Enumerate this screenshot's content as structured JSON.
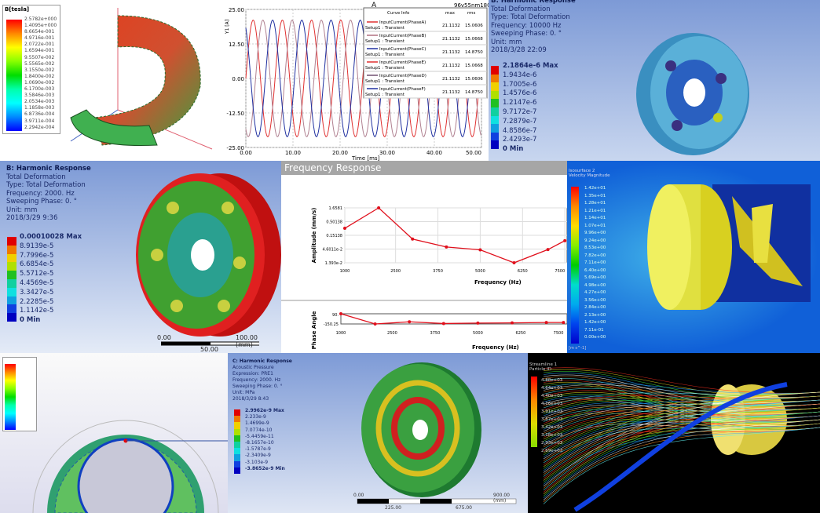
{
  "panels": {
    "magnetic_field": {
      "legend_title": "B[tesla]",
      "legend_values": [
        "2.5782e+000",
        "1.4095e+000",
        "8.6654e-001",
        "4.9716e-001",
        "2.0722e-001",
        "1.6594e-001",
        "9.5507e-002",
        "5.5565e-002",
        "3.1550e-002",
        "1.8400e-002",
        "1.0690e-002",
        "6.1700e-003",
        "3.5846e-003",
        "2.0534e-003",
        "1.1858e-003",
        "6.8736e-004",
        "3.9711e-004",
        "2.2942e-004"
      ]
    },
    "transient": {
      "title": "A",
      "subtitle": "96v55nm180",
      "ylabel": "Y1 [A]",
      "xlabel": "Time [ms]",
      "legend_header": [
        "Curve Info",
        "max",
        "rms"
      ],
      "legend": [
        {
          "name": "InputCurrent(PhaseA)",
          "setup": "Setup1 : Transient",
          "max": "21.1132",
          "rms": "15.0606",
          "color": "#e03030"
        },
        {
          "name": "InputCurrent(PhaseB)",
          "setup": "Setup1 : Transient",
          "max": "21.1132",
          "rms": "15.0668",
          "color": "#b07080"
        },
        {
          "name": "InputCurrent(PhaseC)",
          "setup": "Setup1 : Transient",
          "max": "21.1132",
          "rms": "14.8750",
          "color": "#2030a0"
        },
        {
          "name": "InputCurrent(PhaseE)",
          "setup": "Setup1 : Transient",
          "max": "21.1132",
          "rms": "15.0668",
          "color": "#e03030"
        },
        {
          "name": "InputCurrent(PhaseD)",
          "setup": "Setup1 : Transient",
          "max": "21.1132",
          "rms": "15.0606",
          "color": "#705070"
        },
        {
          "name": "InputCurrent(PhaseF)",
          "setup": "Setup1 : Transient",
          "max": "21.1132",
          "rms": "14.8750",
          "color": "#2030a0"
        }
      ]
    },
    "harmonic_10000": {
      "lines": [
        "B: Harmonic Response",
        "Total Deformation",
        "Type: Total Deformation",
        "Frequency: 10000 Hz",
        "Sweeping Phase: 0. °",
        "Unit: mm",
        "2018/3/28 22:09"
      ],
      "legend_values": [
        "2.1864e-6 Max",
        "1.9434e-6",
        "1.7005e-6",
        "1.4576e-6",
        "1.2147e-6",
        "9.7172e-7",
        "7.2879e-7",
        "4.8586e-7",
        "2.4293e-7",
        "0 Min"
      ]
    },
    "harmonic_2000": {
      "lines": [
        "B: Harmonic Response",
        "Total Deformation",
        "Type: Total Deformation",
        "Frequency: 2000. Hz",
        "Sweeping Phase: 0. °",
        "Unit: mm",
        "2018/3/29 9:36"
      ],
      "legend_values": [
        "0.00010028 Max",
        "8.9139e-5",
        "7.7996e-5",
        "6.6854e-5",
        "5.5712e-5",
        "4.4569e-5",
        "3.3427e-5",
        "2.2285e-5",
        "1.1142e-5",
        "0 Min"
      ],
      "scale": {
        "left": "0.00",
        "right": "100.00 (mm)",
        "mid": "50.00"
      }
    },
    "frequency_response": {
      "title": "Frequency Response"
    },
    "cfd_velocity": {
      "legend_title": [
        "Isosurface 2",
        "Velocity Magnitude"
      ],
      "legend_values": [
        "1.42e+01",
        "1.35e+01",
        "1.28e+01",
        "1.21e+01",
        "1.14e+01",
        "1.07e+01",
        "9.96e+00",
        "9.24e+00",
        "8.53e+00",
        "7.82e+00",
        "7.11e+00",
        "6.40e+00",
        "5.69e+00",
        "4.98e+00",
        "4.27e+00",
        "3.56e+00",
        "2.84e+00",
        "2.13e+00",
        "1.42e+00",
        "7.11e-01",
        "0.00e+00"
      ],
      "unit": "[m s^-1]"
    },
    "acoustic": {
      "lines": [
        "C: Harmonic Response",
        "Acoustic Pressure",
        "Expression: PRE1",
        "Frequency: 2000. Hz",
        "Sweeping Phase: 0. °",
        "Unit: MPa",
        "2018/3/29 8:43"
      ],
      "legend_values": [
        "2.9962e-9 Max",
        "2.233e-9",
        "1.4699e-9",
        "7.0774e-10",
        "-5.4459e-11",
        "-8.1657e-10",
        "-1.5787e-9",
        "-2.3409e-9",
        "-3.103e-9",
        "-3.8652e-9 Min"
      ],
      "scale": {
        "left": "0.00",
        "right": "900.00 (mm)",
        "a": "225.00",
        "b": "675.00"
      }
    },
    "streamlines": {
      "legend_title": [
        "Streamline 1",
        "Particle ID"
      ],
      "legend_values": [
        "4.88e+03",
        "4.64e+03",
        "4.40e+03",
        "4.16e+03",
        "3.91e+03",
        "3.67e+03",
        "3.42e+03",
        "3.18e+03",
        "2.93e+03",
        "2.69e+03"
      ]
    }
  },
  "chart_data": [
    {
      "type": "line",
      "title": "A",
      "xlabel": "Time [ms]",
      "ylabel": "Y1 [A]",
      "xlim": [
        0,
        50
      ],
      "ylim": [
        -25,
        25
      ],
      "xticks": [
        "0.00",
        "10.00",
        "20.00",
        "30.00",
        "40.00",
        "50.00"
      ],
      "yticks": [
        "25.00",
        "12.50",
        "0.00",
        "-12.50",
        "-25.00"
      ],
      "series": [
        {
          "name": "InputCurrent(PhaseA)",
          "amplitude": 21.1132,
          "period_ms": 6.2,
          "phase_deg": 0
        },
        {
          "name": "InputCurrent(PhaseB)",
          "amplitude": 21.1132,
          "period_ms": 6.2,
          "phase_deg": -120
        },
        {
          "name": "InputCurrent(PhaseC)",
          "amplitude": 21.1132,
          "period_ms": 6.2,
          "phase_deg": 120
        }
      ],
      "grid": true
    },
    {
      "type": "line",
      "xlabel": "Frequency (Hz)",
      "ylabel": "Amplitude (mm/s)",
      "yscale": "log",
      "xticks": [
        "1000",
        "2500",
        "3750",
        "5000",
        "6250",
        "7500"
      ],
      "yticks": [
        "1.6581",
        "0.50138",
        "0.15138",
        "4.6011e-2",
        "1.393e-2"
      ],
      "x": [
        1000,
        2000,
        3000,
        4000,
        5000,
        6000,
        7000,
        7500
      ],
      "y": [
        0.28,
        1.6581,
        0.11,
        0.055,
        0.043,
        0.0139,
        0.044,
        0.095
      ],
      "color": "#e0101c",
      "grid": true
    },
    {
      "type": "line",
      "xlabel": "Frequency (Hz)",
      "ylabel": "Phase Angle",
      "yticks": [
        "90.",
        "-150.25"
      ],
      "xticks": [
        "1000",
        "2500",
        "3750",
        "5000",
        "6250",
        "7500"
      ],
      "x": [
        1000,
        2000,
        3000,
        4000,
        5000,
        6000,
        7000,
        7500
      ],
      "y": [
        90,
        -150,
        -100,
        -140,
        -130,
        -125,
        -115,
        -115
      ],
      "color": "#e0101c"
    }
  ]
}
